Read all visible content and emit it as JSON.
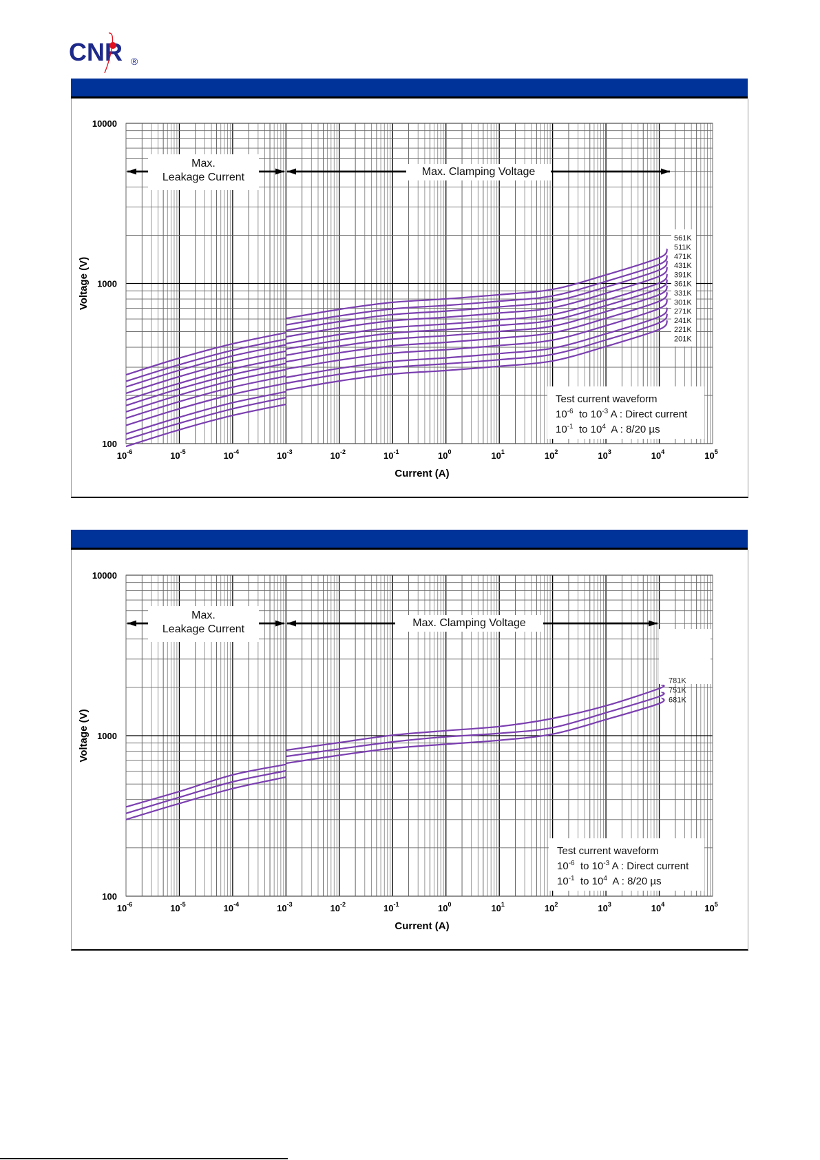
{
  "logo": {
    "text": "CNR",
    "registered": "®",
    "colors": {
      "text": "#1e2a8a",
      "orbit": "#e0101e"
    }
  },
  "colors": {
    "header_bar": "#003399",
    "series": "#7b3fb0",
    "grid_major": "#000000",
    "grid_minor": "#8a8a8a"
  },
  "annotations": {
    "leakage_line1": "Max.",
    "leakage_line2": "Leakage Current",
    "clamping": "Max. Clamping Voltage",
    "waveform_title": "Test current waveform",
    "waveform_row1": {
      "from_base": "10",
      "from_exp": "-6",
      "to_word": "to",
      "to_base": "10",
      "to_exp": "-3",
      "desc": "A : Direct current"
    },
    "waveform_row2": {
      "from_base": "10",
      "from_exp": "-1",
      "to_word": "to",
      "to_base": "10",
      "to_exp": "4",
      "desc": "A : 8/20 µs"
    }
  },
  "chart_data": [
    {
      "type": "line",
      "title": "",
      "xlabel": "Current (A)",
      "ylabel": "Voltage  (V)",
      "xscale": "log",
      "yscale": "log",
      "xlim": [
        1e-06,
        100000.0
      ],
      "ylim": [
        100,
        10000
      ],
      "x_tick_exponents": [
        "-6",
        "-5",
        "-4",
        "-3",
        "-2",
        "-1",
        "0",
        "1",
        "2",
        "3",
        "4",
        "5"
      ],
      "x_tick_base": "10",
      "y_ticks": [
        "100",
        "1000",
        "10000"
      ],
      "grid": true,
      "legend_placement": "right-end-of-curves",
      "leakage_x_log10": [
        -6,
        -5,
        -4,
        -3
      ],
      "clamp_x_log10": [
        -3,
        -2,
        -1,
        0,
        1,
        2,
        3,
        4,
        4.15
      ],
      "series": [
        {
          "name": "201K",
          "leakage": [
            96,
            122,
            150,
            176
          ],
          "clamp": [
            216,
            246,
            272,
            286,
            304,
            328,
            404,
            516,
            588
          ]
        },
        {
          "name": "221K",
          "leakage": [
            106,
            134,
            165,
            194
          ],
          "clamp": [
            238,
            271,
            299,
            315,
            334,
            361,
            444,
            568,
            647
          ]
        },
        {
          "name": "241K",
          "leakage": [
            115,
            146,
            180,
            211
          ],
          "clamp": [
            259,
            295,
            326,
            343,
            365,
            394,
            485,
            619,
            706
          ]
        },
        {
          "name": "271K",
          "leakage": [
            130,
            165,
            203,
            238
          ],
          "clamp": [
            292,
            332,
            367,
            386,
            410,
            443,
            545,
            697,
            794
          ]
        },
        {
          "name": "301K",
          "leakage": [
            144,
            183,
            225,
            264
          ],
          "clamp": [
            324,
            369,
            408,
            429,
            456,
            492,
            606,
            774,
            882
          ]
        },
        {
          "name": "331K",
          "leakage": [
            158,
            201,
            248,
            290
          ],
          "clamp": [
            356,
            406,
            449,
            472,
            502,
            541,
            667,
            851,
            970
          ]
        },
        {
          "name": "361K",
          "leakage": [
            173,
            220,
            270,
            317
          ],
          "clamp": [
            389,
            443,
            490,
            515,
            547,
            590,
            727,
            929,
            1058
          ]
        },
        {
          "name": "391K",
          "leakage": [
            187,
            238,
            293,
            343
          ],
          "clamp": [
            421,
            480,
            530,
            558,
            593,
            640,
            788,
            1006,
            1147
          ]
        },
        {
          "name": "431K",
          "leakage": [
            206,
            262,
            323,
            378
          ],
          "clamp": [
            464,
            529,
            585,
            615,
            654,
            705,
            869,
            1109,
            1264
          ]
        },
        {
          "name": "471K",
          "leakage": [
            226,
            287,
            353,
            414
          ],
          "clamp": [
            508,
            578,
            639,
            672,
            714,
            771,
            949,
            1213,
            1382
          ]
        },
        {
          "name": "511K",
          "leakage": [
            245,
            311,
            383,
            449
          ],
          "clamp": [
            551,
            627,
            694,
            729,
            775,
            836,
            1030,
            1316,
            1499
          ]
        },
        {
          "name": "561K",
          "leakage": [
            269,
            342,
            420,
            493
          ],
          "clamp": [
            605,
            689,
            762,
            801,
            851,
            918,
            1131,
            1445,
            1646
          ]
        }
      ]
    },
    {
      "type": "line",
      "title": "",
      "xlabel": "Current (A)",
      "ylabel": "Voltage  (V)",
      "xscale": "log",
      "yscale": "log",
      "xlim": [
        1e-06,
        100000.0
      ],
      "ylim": [
        100,
        10000
      ],
      "x_tick_exponents": [
        "-6",
        "-5",
        "-4",
        "-3",
        "-2",
        "-1",
        "0",
        "1",
        "2",
        "3",
        "4",
        "5"
      ],
      "x_tick_base": "10",
      "y_ticks": [
        "100",
        "1000",
        "10000"
      ],
      "grid": true,
      "legend_placement": "right-end-of-curves",
      "leakage_x_log10": [
        -6,
        -5,
        -4,
        -3
      ],
      "clamp_x_log10": [
        -3,
        -2,
        -1,
        0,
        1,
        2,
        3,
        4,
        4.05
      ],
      "series": [
        {
          "name": "681K",
          "leakage": [
            300,
            378,
            468,
            552
          ],
          "clamp": [
            673,
            755,
            834,
            885,
            936,
            1023,
            1260,
            1587,
            1722
          ]
        },
        {
          "name": "751K",
          "leakage": [
            328,
            413,
            516,
            604
          ],
          "clamp": [
            743,
            826,
            915,
            984,
            1034,
            1122,
            1390,
            1755,
            1871
          ]
        },
        {
          "name": "781K",
          "leakage": [
            360,
            449,
            570,
            662
          ],
          "clamp": [
            812,
            906,
            1007,
            1075,
            1141,
            1280,
            1535,
            1968,
            2065
          ]
        }
      ]
    }
  ]
}
